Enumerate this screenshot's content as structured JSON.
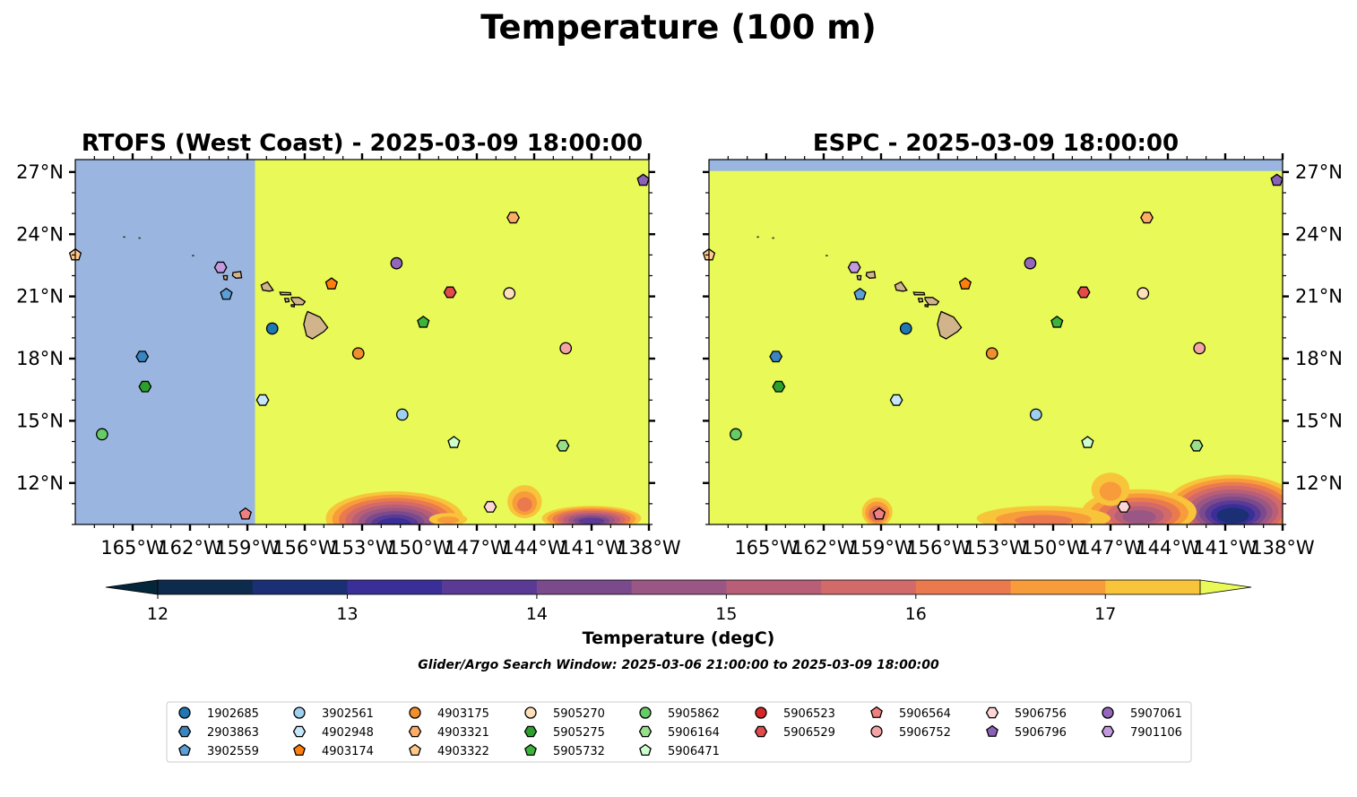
{
  "figure": {
    "title": "Temperature (100 m)",
    "search_window": "Glider/Argo Search Window: 2025-03-06 21:00:00 to 2025-03-09 18:00:00"
  },
  "colors": {
    "land": "#d2b48c",
    "no_data": "#9ab6e0",
    "warm_max": "#e8f958"
  },
  "chart_data": [
    {
      "type": "heatmap",
      "title": "RTOFS (West Coast) - 2025-03-09 18:00:00",
      "lon_range": [
        -168,
        -138
      ],
      "lat_range": [
        10,
        27.6
      ],
      "x_ticks": [
        "165°W",
        "162°W",
        "159°W",
        "156°W",
        "153°W",
        "150°W",
        "147°W",
        "144°W",
        "141°W",
        "138°W"
      ],
      "y_ticks": [
        "12°N",
        "15°N",
        "18°N",
        "21°N",
        "24°N",
        "27°N"
      ],
      "no_data_west_of_lon": -158.6,
      "grid": false,
      "cool_patches": [
        {
          "lon": -151.3,
          "lat": 10.3,
          "rlon": 3.6,
          "rlat": 1.3,
          "min_temp": 12.9
        },
        {
          "lon": -144.5,
          "lat": 11.1,
          "rlon": 0.9,
          "rlat": 0.8,
          "min_temp": 16.2
        },
        {
          "lon": -141.0,
          "lat": 10.3,
          "rlon": 2.6,
          "rlat": 0.6,
          "min_temp": 13.6
        },
        {
          "lon": -148.5,
          "lat": 10.25,
          "rlon": 1.0,
          "rlat": 0.3,
          "min_temp": 16.4
        }
      ]
    },
    {
      "type": "heatmap",
      "title": "ESPC - 2025-03-09 18:00:00",
      "lon_range": [
        -168,
        -138
      ],
      "lat_range": [
        10,
        27.6
      ],
      "x_ticks": [
        "165°W",
        "162°W",
        "159°W",
        "156°W",
        "153°W",
        "150°W",
        "147°W",
        "144°W",
        "141°W",
        "138°W"
      ],
      "y_ticks": [
        "12°N",
        "15°N",
        "18°N",
        "21°N",
        "24°N",
        "27°N"
      ],
      "no_data_north_of_lat": 27.05,
      "grid": false,
      "cool_patches": [
        {
          "lon": -140.6,
          "lat": 10.8,
          "rlon": 3.6,
          "rlat": 1.6,
          "min_temp": 12.3
        },
        {
          "lon": -145.5,
          "lat": 10.6,
          "rlon": 3.0,
          "rlat": 1.1,
          "min_temp": 14.6
        },
        {
          "lon": -150.5,
          "lat": 10.3,
          "rlon": 3.5,
          "rlat": 0.6,
          "min_temp": 15.9
        },
        {
          "lon": -159.2,
          "lat": 10.6,
          "rlon": 0.8,
          "rlat": 0.7,
          "min_temp": 15.4
        },
        {
          "lon": -147.0,
          "lat": 11.7,
          "rlon": 1.0,
          "rlat": 0.8,
          "min_temp": 16.3
        }
      ]
    }
  ],
  "colorbar": {
    "label": "Temperature (degC)",
    "min": 11.75,
    "max": 17.75,
    "ticks": [
      "12",
      "13",
      "14",
      "15",
      "16",
      "17"
    ],
    "tick_values": [
      12,
      13,
      14,
      15,
      16,
      17
    ],
    "levels": [
      12.0,
      12.5,
      13.0,
      13.5,
      14.0,
      14.5,
      15.0,
      15.5,
      16.0,
      16.5,
      17.0,
      17.5
    ],
    "colors": [
      "#04263a",
      "#0d2b4c",
      "#1b2f75",
      "#3a2f98",
      "#5b3a96",
      "#7a4a8c",
      "#9a5684",
      "#b85f77",
      "#d26a6a",
      "#ea7a4e",
      "#f89c3b",
      "#f8c53a",
      "#e8f958"
    ]
  },
  "floats": [
    {
      "id": "1902685",
      "color": "#1f77b4",
      "marker": "circle",
      "lon": -157.7,
      "lat": 19.45
    },
    {
      "id": "2903863",
      "color": "#3a84c0",
      "marker": "hexagon",
      "lon": -164.5,
      "lat": 18.1
    },
    {
      "id": "3902559",
      "color": "#5b9fd6",
      "marker": "pentagon",
      "lon": -160.1,
      "lat": 21.1
    },
    {
      "id": "3902561",
      "color": "#9fd0f0",
      "marker": "circle",
      "lon": -150.9,
      "lat": 15.3
    },
    {
      "id": "4902948",
      "color": "#c6e6fa",
      "marker": "hexagon",
      "lon": -158.2,
      "lat": 16.0
    },
    {
      "id": "4903174",
      "color": "#ff7f0e",
      "marker": "pentagon",
      "lon": -154.6,
      "lat": 21.6
    },
    {
      "id": "4903175",
      "color": "#f28e2b",
      "marker": "circle",
      "lon": -153.2,
      "lat": 18.25
    },
    {
      "id": "4903321",
      "color": "#ffad66",
      "marker": "hexagon",
      "lon": -145.1,
      "lat": 24.8
    },
    {
      "id": "4903322",
      "color": "#ffc98a",
      "marker": "pentagon",
      "lon": -168.0,
      "lat": 23.0
    },
    {
      "id": "5905270",
      "color": "#ffe0bb",
      "marker": "circle",
      "lon": -145.3,
      "lat": 21.15
    },
    {
      "id": "5905275",
      "color": "#2ca02c",
      "marker": "hexagon",
      "lon": -164.35,
      "lat": 16.65
    },
    {
      "id": "5905732",
      "color": "#3cb43c",
      "marker": "pentagon",
      "lon": -149.8,
      "lat": 19.75
    },
    {
      "id": "5905862",
      "color": "#66cc66",
      "marker": "circle",
      "lon": -166.6,
      "lat": 14.35
    },
    {
      "id": "5906164",
      "color": "#98df8a",
      "marker": "hexagon",
      "lon": -142.5,
      "lat": 13.8
    },
    {
      "id": "5906471",
      "color": "#ccffcc",
      "marker": "pentagon",
      "lon": -148.2,
      "lat": 13.95
    },
    {
      "id": "5906523",
      "color": "#d62728",
      "marker": "circle",
      "lon": null,
      "lat": null
    },
    {
      "id": "5906529",
      "color": "#e34a4a",
      "marker": "hexagon",
      "lon": -148.4,
      "lat": 21.2
    },
    {
      "id": "5906564",
      "color": "#f07f7f",
      "marker": "pentagon",
      "lon": -159.1,
      "lat": 10.5
    },
    {
      "id": "5906752",
      "color": "#f4a4a4",
      "marker": "circle",
      "lon": -142.35,
      "lat": 18.5
    },
    {
      "id": "5906756",
      "color": "#ffd6d6",
      "marker": "hexagon",
      "lon": -146.3,
      "lat": 10.85
    },
    {
      "id": "5906796",
      "color": "#8a63b8",
      "marker": "pentagon",
      "lon": -138.3,
      "lat": 26.6
    },
    {
      "id": "5907061",
      "color": "#9467bd",
      "marker": "circle",
      "lon": -151.2,
      "lat": 22.6
    },
    {
      "id": "7901106",
      "color": "#c29ae0",
      "marker": "hexagon",
      "lon": -160.4,
      "lat": 22.4
    }
  ],
  "islands": [
    {
      "name": "Hawaii",
      "pts": [
        [
          -155.85,
          20.27
        ],
        [
          -155.2,
          20.0
        ],
        [
          -154.8,
          19.5
        ],
        [
          -155.0,
          19.3
        ],
        [
          -155.6,
          18.95
        ],
        [
          -155.9,
          19.1
        ],
        [
          -156.05,
          19.65
        ],
        [
          -155.95,
          20.05
        ]
      ]
    },
    {
      "name": "Maui",
      "pts": [
        [
          -156.7,
          20.95
        ],
        [
          -156.3,
          20.95
        ],
        [
          -155.98,
          20.75
        ],
        [
          -156.1,
          20.6
        ],
        [
          -156.5,
          20.6
        ],
        [
          -156.7,
          20.85
        ]
      ]
    },
    {
      "name": "Kahoolawe",
      "pts": [
        [
          -156.7,
          20.6
        ],
        [
          -156.55,
          20.6
        ],
        [
          -156.55,
          20.5
        ],
        [
          -156.7,
          20.52
        ]
      ]
    },
    {
      "name": "Lanai",
      "pts": [
        [
          -157.05,
          20.9
        ],
        [
          -156.85,
          20.9
        ],
        [
          -156.82,
          20.75
        ],
        [
          -157.0,
          20.73
        ]
      ]
    },
    {
      "name": "Molokai",
      "pts": [
        [
          -157.3,
          21.2
        ],
        [
          -156.75,
          21.18
        ],
        [
          -156.72,
          21.08
        ],
        [
          -157.25,
          21.08
        ]
      ]
    },
    {
      "name": "Oahu",
      "pts": [
        [
          -158.28,
          21.55
        ],
        [
          -157.95,
          21.7
        ],
        [
          -157.65,
          21.3
        ],
        [
          -157.85,
          21.25
        ],
        [
          -158.2,
          21.3
        ]
      ]
    },
    {
      "name": "Kauai",
      "pts": [
        [
          -159.75,
          22.15
        ],
        [
          -159.35,
          22.2
        ],
        [
          -159.3,
          21.9
        ],
        [
          -159.6,
          21.88
        ],
        [
          -159.78,
          22.0
        ]
      ]
    },
    {
      "name": "Niihau",
      "pts": [
        [
          -160.25,
          22.0
        ],
        [
          -160.05,
          22.0
        ],
        [
          -160.07,
          21.8
        ],
        [
          -160.22,
          21.82
        ]
      ]
    }
  ],
  "legend": {
    "columns": [
      [
        "1902685",
        "2903863",
        "3902559"
      ],
      [
        "3902561",
        "4902948",
        "4903174"
      ],
      [
        "4903175",
        "4903321",
        "4903322"
      ],
      [
        "5905270",
        "5905275",
        "5905732"
      ],
      [
        "5905862",
        "5906164",
        "5906471"
      ],
      [
        "5906523",
        "5906529"
      ],
      [
        "5906564",
        "5906752"
      ],
      [
        "5906756",
        "5906796"
      ],
      [
        "5907061",
        "7901106"
      ]
    ]
  }
}
